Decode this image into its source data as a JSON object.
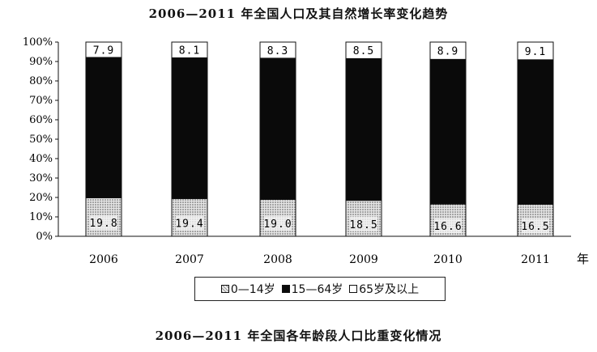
{
  "chart_data": {
    "type": "bar",
    "stacked": true,
    "title": "2006—2011 年全国人口及其自然增长率变化趋势",
    "caption": "2006—2011 年全国各年龄段人口比重变化情况",
    "categories": [
      "2006",
      "2007",
      "2008",
      "2009",
      "2010",
      "2011"
    ],
    "x_unit": "年",
    "yticks": [
      "0%",
      "10%",
      "20%",
      "30%",
      "40%",
      "50%",
      "60%",
      "70%",
      "80%",
      "90%",
      "100%"
    ],
    "ylim": [
      0,
      100
    ],
    "legend_position": "bottom",
    "series": [
      {
        "name": "0—14岁",
        "values": [
          19.8,
          19.4,
          19.0,
          18.5,
          16.6,
          16.5
        ],
        "color": "#d4d4d4",
        "pattern": "dotted",
        "labels": [
          "19.8",
          "19.4",
          "19.0",
          "18.5",
          "16.6",
          "16.5"
        ]
      },
      {
        "name": "15—64岁",
        "values": [
          72.3,
          72.5,
          72.7,
          73.0,
          74.5,
          74.4
        ],
        "color": "#0a0a0a"
      },
      {
        "name": "65岁及以上",
        "values": [
          7.9,
          8.1,
          8.3,
          8.5,
          8.9,
          9.1
        ],
        "color": "#ffffff",
        "labels": [
          "7.9",
          "8.1",
          "8.3",
          "8.5",
          "8.9",
          "9.1"
        ]
      }
    ]
  },
  "legend": {
    "items": [
      "0—14岁",
      "15—64岁",
      "65岁及以上"
    ]
  }
}
